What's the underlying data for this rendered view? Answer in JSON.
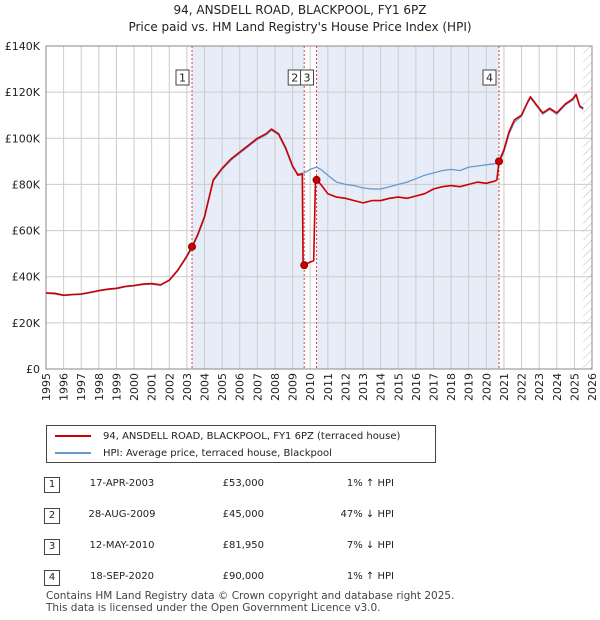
{
  "chart_data": {
    "type": "line",
    "title": "94, ANSDELL ROAD, BLACKPOOL, FY1 6PZ",
    "subtitle": "Price paid vs. HM Land Registry's House Price Index (HPI)",
    "x_ticks": [
      "1995",
      "1996",
      "1997",
      "1998",
      "1999",
      "2000",
      "2001",
      "2002",
      "2003",
      "2004",
      "2005",
      "2006",
      "2007",
      "2008",
      "2009",
      "2010",
      "2011",
      "2012",
      "2013",
      "2014",
      "2015",
      "2016",
      "2017",
      "2018",
      "2019",
      "2020",
      "2021",
      "2022",
      "2023",
      "2024",
      "2025",
      "2026"
    ],
    "y_ticks": [
      "£0",
      "£20K",
      "£40K",
      "£60K",
      "£80K",
      "£100K",
      "£120K",
      "£140K"
    ],
    "xlim": [
      1995,
      2026
    ],
    "ylim": [
      0,
      140000
    ],
    "series": [
      {
        "name": "94, ANSDELL ROAD, BLACKPOOL, FY1 6PZ (terraced house)",
        "color": "#cc0000",
        "points": [
          [
            1995,
            33000
          ],
          [
            1995.5,
            32800
          ],
          [
            1996,
            32000
          ],
          [
            1996.5,
            32300
          ],
          [
            1997,
            32500
          ],
          [
            1997.5,
            33200
          ],
          [
            1998,
            34000
          ],
          [
            1998.5,
            34600
          ],
          [
            1999,
            35000
          ],
          [
            1999.5,
            35800
          ],
          [
            2000,
            36200
          ],
          [
            2000.5,
            36800
          ],
          [
            2001,
            37000
          ],
          [
            2001.5,
            36500
          ],
          [
            2002,
            38500
          ],
          [
            2002.5,
            43000
          ],
          [
            2003,
            49000
          ],
          [
            2003.29,
            53000
          ],
          [
            2003.6,
            58000
          ],
          [
            2004,
            66000
          ],
          [
            2004.5,
            82000
          ],
          [
            2005,
            87000
          ],
          [
            2005.5,
            91000
          ],
          [
            2006,
            94000
          ],
          [
            2006.5,
            97000
          ],
          [
            2007,
            100000
          ],
          [
            2007.5,
            102000
          ],
          [
            2007.8,
            104000
          ],
          [
            2008.2,
            102000
          ],
          [
            2008.6,
            96000
          ],
          [
            2009,
            88000
          ],
          [
            2009.3,
            84000
          ],
          [
            2009.55,
            84500
          ],
          [
            2009.6,
            45000
          ],
          [
            2009.9,
            46000
          ],
          [
            2010.2,
            47000
          ],
          [
            2010.3,
            82500
          ],
          [
            2010.36,
            81950
          ],
          [
            2010.6,
            80000
          ],
          [
            2011,
            76000
          ],
          [
            2011.5,
            74500
          ],
          [
            2012,
            74000
          ],
          [
            2012.5,
            73000
          ],
          [
            2013,
            72000
          ],
          [
            2013.5,
            73000
          ],
          [
            2014,
            73000
          ],
          [
            2014.5,
            74000
          ],
          [
            2015,
            74500
          ],
          [
            2015.5,
            74000
          ],
          [
            2016,
            75000
          ],
          [
            2016.5,
            76000
          ],
          [
            2017,
            78000
          ],
          [
            2017.5,
            79000
          ],
          [
            2018,
            79500
          ],
          [
            2018.5,
            79000
          ],
          [
            2019,
            80000
          ],
          [
            2019.5,
            81000
          ],
          [
            2020,
            80500
          ],
          [
            2020.5,
            81500
          ],
          [
            2020.6,
            82000
          ],
          [
            2020.72,
            90000
          ],
          [
            2021,
            95000
          ],
          [
            2021.3,
            103000
          ],
          [
            2021.6,
            108000
          ],
          [
            2022,
            110000
          ],
          [
            2022.3,
            115000
          ],
          [
            2022.5,
            118000
          ],
          [
            2022.9,
            114000
          ],
          [
            2023.2,
            111000
          ],
          [
            2023.6,
            113000
          ],
          [
            2024,
            111000
          ],
          [
            2024.5,
            115000
          ],
          [
            2024.9,
            117000
          ],
          [
            2025.1,
            119000
          ],
          [
            2025.3,
            114000
          ],
          [
            2025.5,
            113000
          ]
        ]
      },
      {
        "name": "HPI: Average price, terraced house, Blackpool",
        "color": "#6699cc",
        "points": [
          [
            1995,
            32800
          ],
          [
            1995.5,
            32500
          ],
          [
            1996,
            31800
          ],
          [
            1996.5,
            32100
          ],
          [
            1997,
            32300
          ],
          [
            1997.5,
            33000
          ],
          [
            1998,
            33800
          ],
          [
            1998.5,
            34400
          ],
          [
            1999,
            34800
          ],
          [
            1999.5,
            35600
          ],
          [
            2000,
            36000
          ],
          [
            2000.5,
            36600
          ],
          [
            2001,
            36800
          ],
          [
            2001.5,
            36300
          ],
          [
            2002,
            38300
          ],
          [
            2002.5,
            42800
          ],
          [
            2003,
            48600
          ],
          [
            2003.29,
            52500
          ],
          [
            2003.6,
            57500
          ],
          [
            2004,
            65500
          ],
          [
            2004.5,
            81500
          ],
          [
            2005,
            86500
          ],
          [
            2005.5,
            90500
          ],
          [
            2006,
            93500
          ],
          [
            2006.5,
            96500
          ],
          [
            2007,
            99500
          ],
          [
            2007.5,
            101500
          ],
          [
            2007.8,
            103500
          ],
          [
            2008.2,
            101500
          ],
          [
            2008.6,
            95500
          ],
          [
            2009,
            87500
          ],
          [
            2009.3,
            84500
          ],
          [
            2009.66,
            85000
          ],
          [
            2010,
            86500
          ],
          [
            2010.36,
            87500
          ],
          [
            2010.6,
            86500
          ],
          [
            2011,
            84000
          ],
          [
            2011.5,
            81000
          ],
          [
            2012,
            80000
          ],
          [
            2012.5,
            79500
          ],
          [
            2013,
            78500
          ],
          [
            2013.5,
            78000
          ],
          [
            2014,
            78000
          ],
          [
            2014.5,
            79000
          ],
          [
            2015,
            80000
          ],
          [
            2015.5,
            81000
          ],
          [
            2016,
            82500
          ],
          [
            2016.5,
            84000
          ],
          [
            2017,
            85000
          ],
          [
            2017.5,
            86000
          ],
          [
            2018,
            86500
          ],
          [
            2018.5,
            86000
          ],
          [
            2019,
            87500
          ],
          [
            2019.5,
            88000
          ],
          [
            2020,
            88500
          ],
          [
            2020.5,
            89000
          ],
          [
            2020.72,
            89200
          ],
          [
            2021,
            94000
          ],
          [
            2021.3,
            102000
          ],
          [
            2021.6,
            107000
          ],
          [
            2022,
            109500
          ],
          [
            2022.3,
            114500
          ],
          [
            2022.5,
            117500
          ],
          [
            2022.9,
            113500
          ],
          [
            2023.2,
            110500
          ],
          [
            2023.6,
            112500
          ],
          [
            2024,
            110500
          ],
          [
            2024.5,
            114500
          ],
          [
            2024.9,
            116500
          ],
          [
            2025.1,
            118500
          ],
          [
            2025.3,
            113500
          ],
          [
            2025.5,
            112500
          ]
        ]
      }
    ],
    "markers": [
      {
        "label": "1",
        "x": 2003.29,
        "y": 53000
      },
      {
        "label": "2",
        "x": 2009.66,
        "y": 45000
      },
      {
        "label": "3",
        "x": 2010.36,
        "y": 81950
      },
      {
        "label": "4",
        "x": 2020.72,
        "y": 90000
      }
    ],
    "shaded_ranges": [
      [
        2003.29,
        2009.66
      ],
      [
        2010.36,
        2020.72
      ]
    ],
    "future_hatch_from": 2025.5
  },
  "legend": {
    "property_label": "94, ANSDELL ROAD, BLACKPOOL, FY1 6PZ (terraced house)",
    "hpi_label": "HPI: Average price, terraced house, Blackpool"
  },
  "sales": [
    {
      "num": "1",
      "date": "17-APR-2003",
      "price": "£53,000",
      "hpi": "1% ↑ HPI"
    },
    {
      "num": "2",
      "date": "28-AUG-2009",
      "price": "£45,000",
      "hpi": "47% ↓ HPI"
    },
    {
      "num": "3",
      "date": "12-MAY-2010",
      "price": "£81,950",
      "hpi": "7% ↓ HPI"
    },
    {
      "num": "4",
      "date": "18-SEP-2020",
      "price": "£90,000",
      "hpi": "1% ↑ HPI"
    }
  ],
  "footer": {
    "line1": "Contains HM Land Registry data © Crown copyright and database right 2025.",
    "line2": "This data is licensed under the Open Government Licence v3.0."
  },
  "colors": {
    "property": "#cc0000",
    "hpi": "#6699cc",
    "shade": "#e6ecf8",
    "grid": "#cccccc"
  }
}
